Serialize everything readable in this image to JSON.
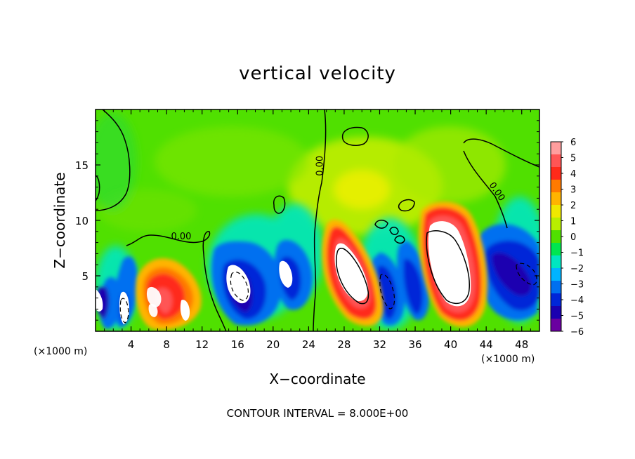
{
  "chart_data": {
    "type": "heatmap",
    "title": "vertical velocity",
    "xlabel": "X−coordinate",
    "ylabel": "Z−coordinate",
    "x_unit_left": "(×1000 m)",
    "x_unit_right": "(×1000 m)",
    "footer": "CONTOUR INTERVAL = 8.000E+00",
    "xlim": [
      0,
      50
    ],
    "ylim": [
      0,
      20
    ],
    "x_ticks": [
      4,
      8,
      12,
      16,
      20,
      24,
      28,
      32,
      36,
      40,
      44,
      48
    ],
    "x_tick_labels": [
      "4",
      "8",
      "12",
      "16",
      "20",
      "24",
      "28",
      "32",
      "36",
      "40",
      "44",
      "48"
    ],
    "y_ticks": [
      5,
      10,
      15
    ],
    "y_tick_labels": [
      "5",
      "10",
      "15"
    ],
    "contour_labels": [
      {
        "text": "0.00",
        "x": 8.5,
        "y": 8.3
      },
      {
        "text": "0.00",
        "x": 25.6,
        "y": 14.0
      },
      {
        "text": "0.00",
        "x": 44.3,
        "y": 13.2
      }
    ],
    "colorbar": {
      "min": -6,
      "max": 6,
      "tick_labels": [
        "6",
        "5",
        "4",
        "3",
        "2",
        "1",
        "0",
        "−1",
        "−2",
        "−3",
        "−4",
        "−5",
        "−6"
      ],
      "colors": [
        "#ff9e9e",
        "#ff5555",
        "#ff2a1a",
        "#ff7a00",
        "#ffb400",
        "#f0e800",
        "#b8ee00",
        "#50e000",
        "#00e650",
        "#00e6c0",
        "#00b4ff",
        "#0070f0",
        "#0026d8",
        "#1a00b0",
        "#6a00a0"
      ]
    },
    "cells": [
      {
        "x": 1.0,
        "y": 3.5,
        "w": 0.018,
        "v": -5.5
      },
      {
        "x": 3.5,
        "y": 2.5,
        "w": 0.02,
        "v": -4.5
      },
      {
        "x": 7.5,
        "y": 4.5,
        "w": 0.035,
        "v": 5.0
      },
      {
        "x": 10.2,
        "y": 2.5,
        "w": 0.03,
        "v": 4.5
      },
      {
        "x": 17.0,
        "y": 5.0,
        "w": 0.04,
        "v": -5.0
      },
      {
        "x": 21.0,
        "y": 5.5,
        "w": 0.04,
        "v": -4.5
      },
      {
        "x": 29.0,
        "y": 5.5,
        "w": 0.055,
        "v": 6.0
      },
      {
        "x": 33.5,
        "y": 5.0,
        "w": 0.03,
        "v": -4.5
      },
      {
        "x": 35.5,
        "y": 5.0,
        "w": 0.025,
        "v": -3.5
      },
      {
        "x": 40.0,
        "y": 6.5,
        "w": 0.07,
        "v": 6.0
      },
      {
        "x": 46.5,
        "y": 6.0,
        "w": 0.04,
        "v": -4.5
      },
      {
        "x": 28.0,
        "y": 14.0,
        "w": 0.08,
        "v": 1.8
      },
      {
        "x": 8.0,
        "y": 14.5,
        "w": 0.1,
        "v": -0.6
      }
    ]
  }
}
